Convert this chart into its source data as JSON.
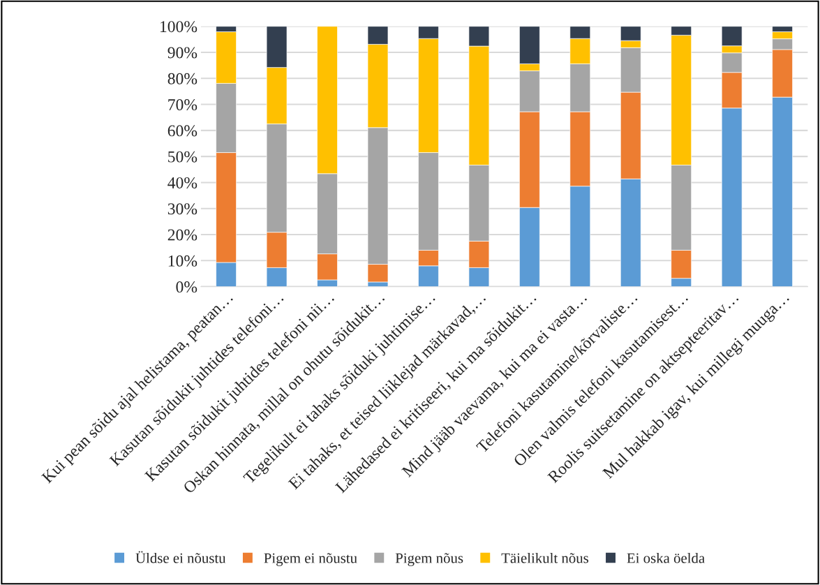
{
  "chart_data": {
    "type": "bar",
    "stacked": true,
    "categories": [
      "Kui pean sõidu ajal helistama, peatan…",
      "Kasutan sõidukit juhtides telefoni…",
      "Kasutan sõidukit juhtides telefoni nii…",
      "Oskan hinnata, millal on ohutu sõidukit…",
      "Tegelikult ei tahaks sõiduki juhtimise…",
      "Ei tahaks, et teised liiklejad märkavad,…",
      "Lähedased ei kritiseeri, kui ma sõidukit…",
      "Mind jääb vaevama, kui ma ei vasta…",
      "Telefoni kasutamine/kõrvaliste…",
      "Olen valmis telefoni kasutamisest…",
      "Roolis suitsetamine on aktsepteeritav…",
      "Mul hakkab igav, kui millegi muuga…"
    ],
    "series": [
      {
        "name": "Üldse ei nõustu",
        "color": "#5b9bd5",
        "values": [
          9.3,
          7.3,
          2.6,
          1.8,
          8.0,
          7.3,
          30.4,
          38.6,
          41.4,
          3.2,
          68.6,
          72.8
        ]
      },
      {
        "name": "Pigem ei nõustu",
        "color": "#ed7d31",
        "values": [
          42.2,
          13.6,
          10.0,
          6.8,
          6.0,
          10.2,
          36.8,
          28.6,
          33.3,
          10.8,
          13.7,
          18.3
        ]
      },
      {
        "name": "Pigem nõus",
        "color": "#a5a5a5",
        "values": [
          26.6,
          41.6,
          30.8,
          52.5,
          37.5,
          29.2,
          15.7,
          18.4,
          17.1,
          32.7,
          7.5,
          4.1
        ]
      },
      {
        "name": "Täielikult nõus",
        "color": "#ffc000",
        "values": [
          19.8,
          21.7,
          56.6,
          32.0,
          43.8,
          45.7,
          2.7,
          9.7,
          2.7,
          49.9,
          2.7,
          2.7
        ]
      },
      {
        "name": "Ei oska öelda",
        "color": "#333f50",
        "values": [
          2.1,
          15.8,
          null,
          6.9,
          4.7,
          7.6,
          14.4,
          4.7,
          5.5,
          3.4,
          7.5,
          2.1
        ]
      }
    ],
    "ylim": [
      0,
      100
    ],
    "yticks": [
      {
        "value": 0,
        "label": "0%"
      },
      {
        "value": 10,
        "label": "10%"
      },
      {
        "value": 20,
        "label": "20%"
      },
      {
        "value": 30,
        "label": "30%"
      },
      {
        "value": 40,
        "label": "40%"
      },
      {
        "value": 50,
        "label": "50%"
      },
      {
        "value": 60,
        "label": "60%"
      },
      {
        "value": 70,
        "label": "70%"
      },
      {
        "value": 80,
        "label": "80%"
      },
      {
        "value": 90,
        "label": "90%"
      },
      {
        "value": 100,
        "label": "100%"
      }
    ],
    "grid": "y",
    "legend": "bottom"
  }
}
